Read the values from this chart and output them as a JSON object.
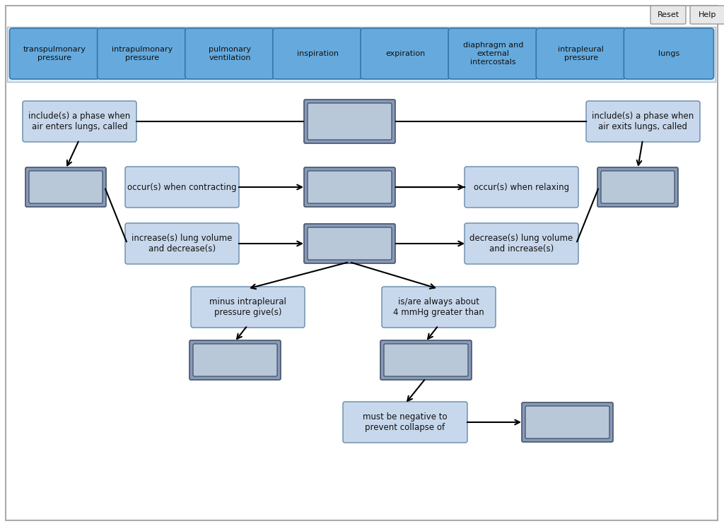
{
  "bg_outer": "#ffffff",
  "bg_inner": "#ffffff",
  "header_bg": "#ddeeff",
  "header_item_color": "#66aadd",
  "label_fill": "#c8d8ec",
  "label_border": "#6688aa",
  "ans_outer": "#8899bb",
  "ans_inner": "#b8c8d8",
  "outer_border": "#888888",
  "btn_fill": "#e8e8e8",
  "btn_border": "#999999",
  "header_items": [
    "transpulmonary\npressure",
    "intrapulmonary\npressure",
    "pulmonary\nventilation",
    "inspiration",
    "expiration",
    "diaphragm and\nexternal\nintercostals",
    "intrapleural\npressure",
    "lungs"
  ]
}
